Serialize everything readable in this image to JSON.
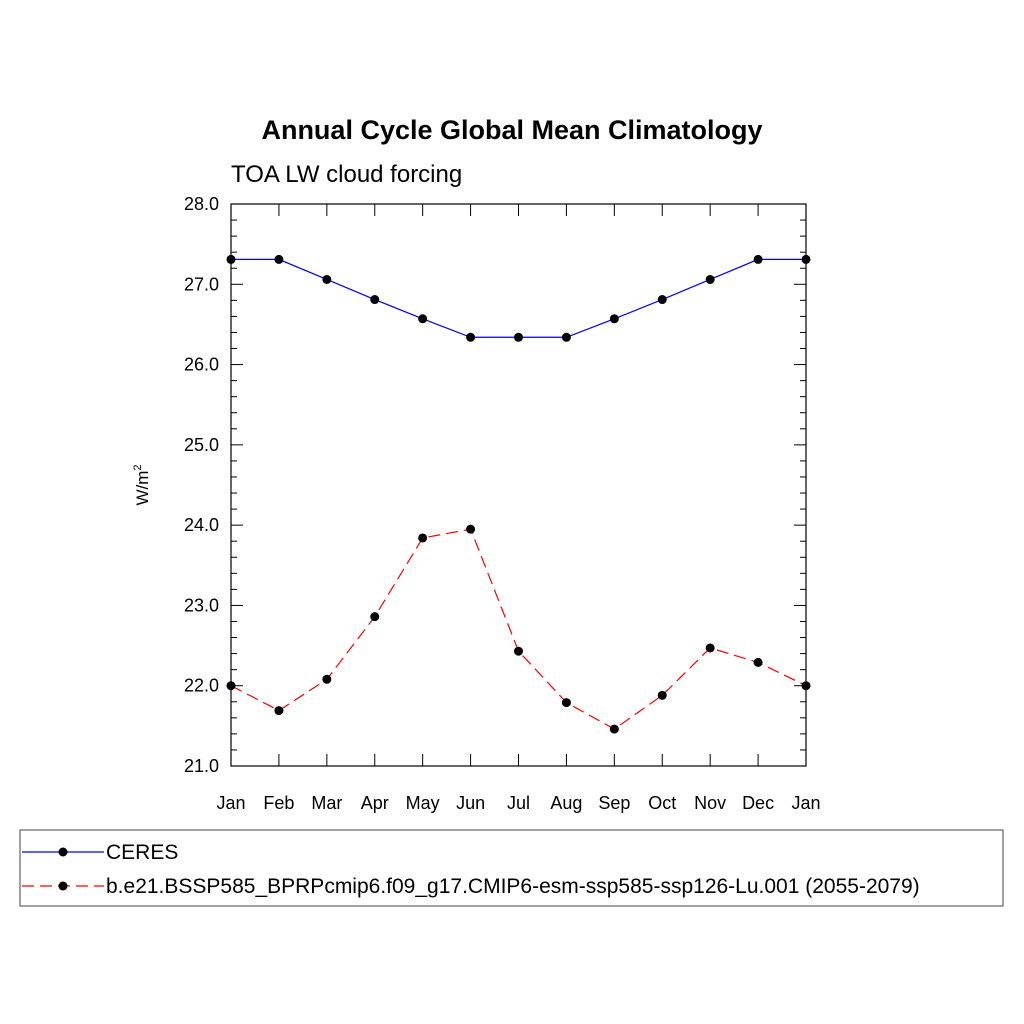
{
  "chart_data": {
    "type": "line",
    "title": "Annual Cycle Global Mean Climatology",
    "subtitle": "TOA LW cloud forcing",
    "ylabel": "W/m",
    "ylabel_superscript": "2",
    "ylim": [
      21.0,
      28.0
    ],
    "yticks": [
      "21.0",
      "22.0",
      "23.0",
      "24.0",
      "25.0",
      "26.0",
      "27.0",
      "28.0"
    ],
    "categories": [
      "Jan",
      "Feb",
      "Mar",
      "Apr",
      "May",
      "Jun",
      "Jul",
      "Aug",
      "Sep",
      "Oct",
      "Nov",
      "Dec",
      "Jan"
    ],
    "grid": false,
    "legend_position": "bottom",
    "series": [
      {
        "name": "CERES",
        "color": "#0000ff",
        "line_style": "solid",
        "marker": "filled-circle",
        "values": [
          27.31,
          27.31,
          27.06,
          26.81,
          26.57,
          26.34,
          26.34,
          26.34,
          26.57,
          26.81,
          27.06,
          27.31,
          27.31
        ]
      },
      {
        "name": "b.e21.BSSP585_BPRPcmip6.f09_g17.CMIP6-esm-ssp585-ssp126-Lu.001 (2055-2079)",
        "color": "#ff0000",
        "line_style": "dashed",
        "marker": "filled-circle",
        "values": [
          22.0,
          21.69,
          22.08,
          22.86,
          23.84,
          23.95,
          22.43,
          21.79,
          21.46,
          21.88,
          22.47,
          22.29,
          22.0
        ]
      }
    ]
  }
}
